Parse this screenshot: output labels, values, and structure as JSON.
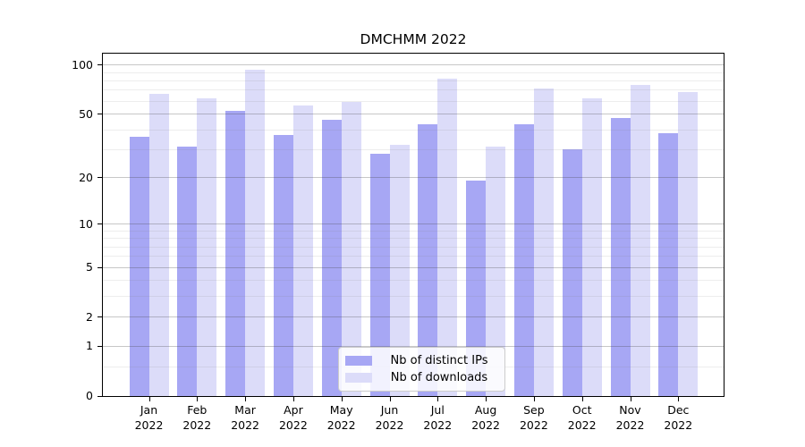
{
  "title": "DMCHMM 2022",
  "chart_data": {
    "type": "bar",
    "title": "DMCHMM 2022",
    "categories": [
      "Jan 2022",
      "Feb 2022",
      "Mar 2022",
      "Apr 2022",
      "May 2022",
      "Jun 2022",
      "Jul 2022",
      "Aug 2022",
      "Sep 2022",
      "Oct 2022",
      "Nov 2022",
      "Dec 2022"
    ],
    "series": [
      {
        "name": "Nb of distinct IPs",
        "color": "#a7a7f4",
        "values": [
          36,
          31,
          52,
          37,
          46,
          28,
          43,
          19,
          43,
          30,
          47,
          38
        ]
      },
      {
        "name": "Nb of downloads",
        "color": "#dcdcf9",
        "values": [
          66,
          62,
          93,
          56,
          59,
          32,
          82,
          31,
          71,
          62,
          75,
          68
        ]
      }
    ],
    "xlabel": "",
    "ylabel": "",
    "yscale": "log1p",
    "yticks": [
      0,
      1,
      2,
      5,
      10,
      20,
      50,
      100
    ],
    "minor_yticks": [
      0.5,
      3,
      4,
      6,
      7,
      8,
      9,
      30,
      40,
      60,
      70,
      80,
      90
    ],
    "ylim": [
      0,
      118
    ],
    "grid": true,
    "legend_position": "lower center"
  },
  "legend": {
    "items": [
      {
        "label": "Nb of distinct IPs",
        "color": "#a7a7f4"
      },
      {
        "label": "Nb of downloads",
        "color": "#dcdcf9"
      }
    ]
  }
}
